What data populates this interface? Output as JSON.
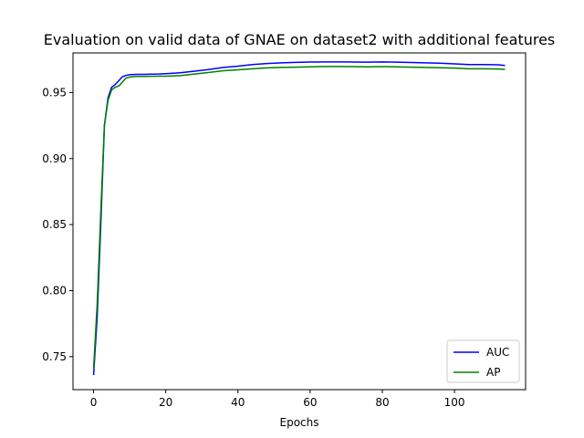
{
  "chart_data": {
    "type": "line",
    "title": "Evaluation on valid data of GNAE on dataset2 with additional features",
    "xlabel": "Epochs",
    "ylabel": "",
    "xlim": [
      -5.7,
      119.7
    ],
    "ylim": [
      0.725,
      0.98
    ],
    "xticks": [
      0,
      20,
      40,
      60,
      80,
      100
    ],
    "yticks": [
      0.75,
      0.8,
      0.85,
      0.9,
      0.95
    ],
    "ytick_labels": [
      "0.75",
      "0.80",
      "0.85",
      "0.90",
      "0.95"
    ],
    "grid": false,
    "legend_position": "lower-right",
    "x": [
      0,
      1,
      2,
      3,
      4,
      5,
      6,
      7,
      8,
      9,
      10,
      11,
      12,
      14,
      16,
      18,
      20,
      24,
      28,
      32,
      36,
      40,
      44,
      48,
      52,
      56,
      60,
      64,
      68,
      72,
      76,
      80,
      84,
      88,
      92,
      96,
      100,
      104,
      108,
      112,
      114
    ],
    "series": [
      {
        "name": "AUC",
        "color": "#0000ff",
        "values": [
          0.736,
          0.78,
          0.85,
          0.925,
          0.946,
          0.954,
          0.956,
          0.959,
          0.962,
          0.963,
          0.9635,
          0.9637,
          0.9638,
          0.9638,
          0.9639,
          0.964,
          0.9643,
          0.965,
          0.9662,
          0.9675,
          0.969,
          0.97,
          0.9712,
          0.972,
          0.9725,
          0.9728,
          0.9731,
          0.9732,
          0.9732,
          0.9731,
          0.973,
          0.9732,
          0.973,
          0.9727,
          0.9725,
          0.9722,
          0.9717,
          0.9712,
          0.9712,
          0.971,
          0.9705
        ]
      },
      {
        "name": "AP",
        "color": "#008000",
        "values": [
          0.741,
          0.79,
          0.86,
          0.925,
          0.944,
          0.952,
          0.954,
          0.955,
          0.958,
          0.961,
          0.9617,
          0.962,
          0.9622,
          0.9622,
          0.9623,
          0.9624,
          0.9624,
          0.9628,
          0.964,
          0.9652,
          0.9665,
          0.9672,
          0.968,
          0.9687,
          0.969,
          0.9692,
          0.9695,
          0.9697,
          0.9697,
          0.9696,
          0.9695,
          0.9696,
          0.9695,
          0.9692,
          0.969,
          0.9688,
          0.9685,
          0.968,
          0.968,
          0.9678,
          0.9676
        ]
      }
    ]
  }
}
